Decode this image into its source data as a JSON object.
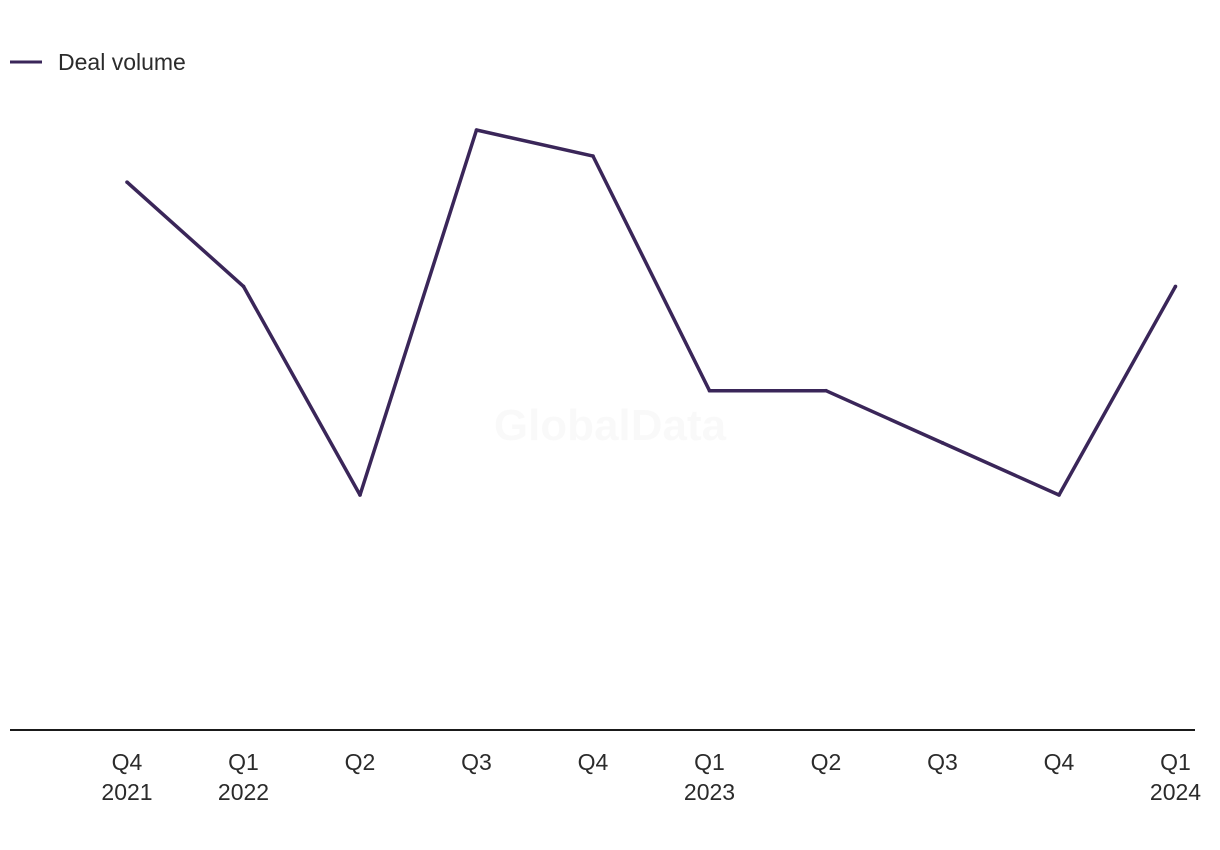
{
  "watermark": "GlobalData",
  "chart_data": {
    "type": "line",
    "title": "",
    "xlabel": "",
    "ylabel": "",
    "categories": [
      [
        "Q4",
        "2021"
      ],
      [
        "Q1",
        "2022"
      ],
      [
        "Q2"
      ],
      [
        "Q3"
      ],
      [
        "Q4"
      ],
      [
        "Q1",
        "2023"
      ],
      [
        "Q2"
      ],
      [
        "Q3"
      ],
      [
        "Q4"
      ],
      [
        "Q1",
        "2024"
      ]
    ],
    "series": [
      {
        "name": "Deal volume",
        "color": "#3a2659",
        "values": [
          5.5,
          4.5,
          2.5,
          6.0,
          5.75,
          3.5,
          3.5,
          3.0,
          2.5,
          4.5
        ]
      }
    ],
    "ylim": [
      0,
      7
    ],
    "grid": false,
    "y_axis_visible": false,
    "legend_position": "top-left",
    "axis_color": "#1a1a1a"
  }
}
